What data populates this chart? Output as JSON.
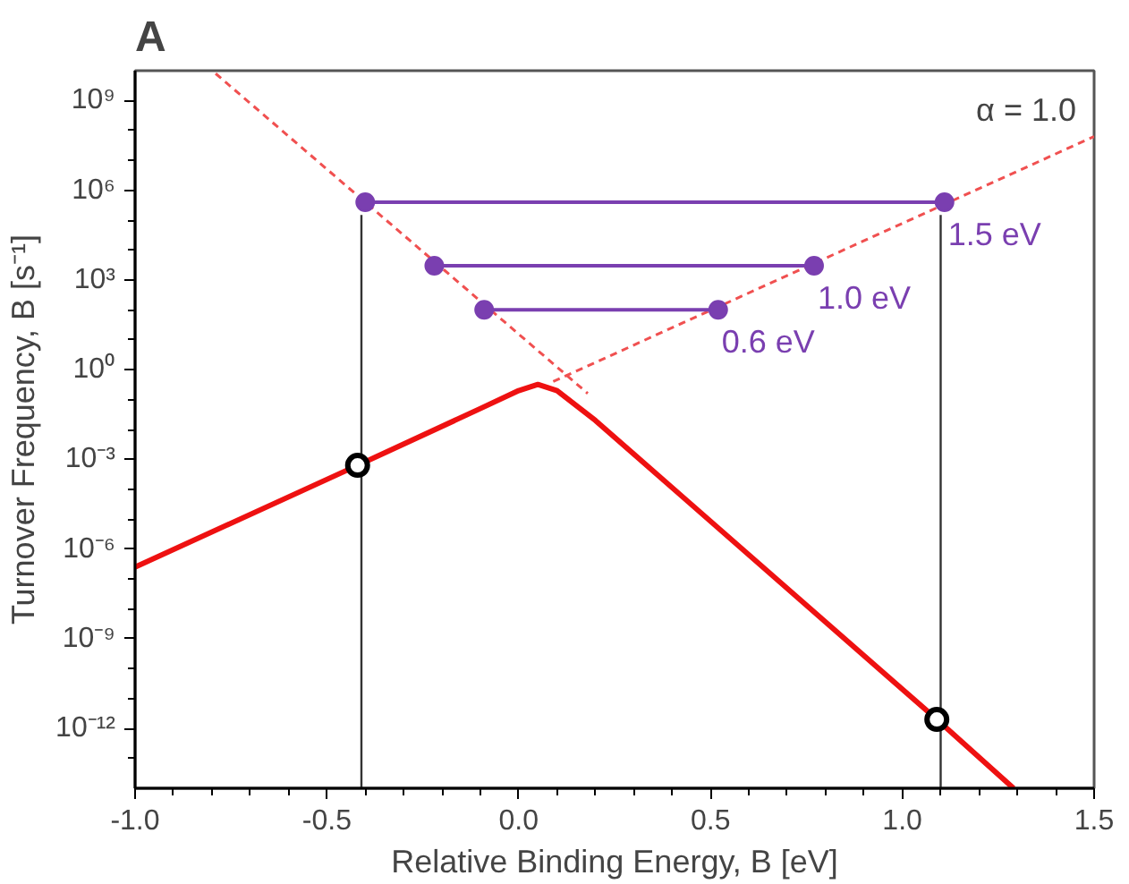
{
  "chart_data": {
    "type": "line",
    "title": "A",
    "xlabel": "Relative Binding Energy, B [eV]",
    "ylabel": "Turnover Frequency, B [s⁻¹]",
    "log": "y",
    "grid": false,
    "xlim": [
      -1.0,
      1.5
    ],
    "ylim": [
      1e-14,
      10000000000.0
    ],
    "xticks": [
      {
        "value": -1.0,
        "label": "-1.0"
      },
      {
        "value": -0.9,
        "label": null
      },
      {
        "value": -0.8,
        "label": null
      },
      {
        "value": -0.7,
        "label": null
      },
      {
        "value": -0.6,
        "label": null
      },
      {
        "value": -0.5,
        "label": "-0.5"
      },
      {
        "value": -0.4,
        "label": null
      },
      {
        "value": -0.3,
        "label": null
      },
      {
        "value": -0.2,
        "label": null
      },
      {
        "value": -0.1,
        "label": null
      },
      {
        "value": 0.0,
        "label": "0.0"
      },
      {
        "value": 0.1,
        "label": null
      },
      {
        "value": 0.2,
        "label": null
      },
      {
        "value": 0.3,
        "label": null
      },
      {
        "value": 0.4,
        "label": null
      },
      {
        "value": 0.5,
        "label": "0.5"
      },
      {
        "value": 0.6,
        "label": null
      },
      {
        "value": 0.7,
        "label": null
      },
      {
        "value": 0.8,
        "label": null
      },
      {
        "value": 0.9,
        "label": null
      },
      {
        "value": 1.0,
        "label": "1.0"
      },
      {
        "value": 1.1,
        "label": null
      },
      {
        "value": 1.2,
        "label": null
      },
      {
        "value": 1.3,
        "label": null
      },
      {
        "value": 1.4,
        "label": null
      },
      {
        "value": 1.5,
        "label": "1.5"
      }
    ],
    "yticks": [
      {
        "value": 1e-13,
        "label": null
      },
      {
        "value": 1e-12,
        "label": "10⁻¹²"
      },
      {
        "value": 1e-11,
        "label": null
      },
      {
        "value": 1e-10,
        "label": null
      },
      {
        "value": 1e-09,
        "label": "10⁻⁹"
      },
      {
        "value": 1e-08,
        "label": null
      },
      {
        "value": 1e-07,
        "label": null
      },
      {
        "value": 1e-06,
        "label": "10⁻⁶"
      },
      {
        "value": 1e-05,
        "label": null
      },
      {
        "value": 0.0001,
        "label": null
      },
      {
        "value": 0.001,
        "label": "10⁻³"
      },
      {
        "value": 0.01,
        "label": null
      },
      {
        "value": 0.1,
        "label": null
      },
      {
        "value": 1,
        "label": "10⁰"
      },
      {
        "value": 10,
        "label": null
      },
      {
        "value": 100,
        "label": null
      },
      {
        "value": 1000,
        "label": "10³"
      },
      {
        "value": 10000.0,
        "label": null
      },
      {
        "value": 100000.0,
        "label": null
      },
      {
        "value": 1000000.0,
        "label": "10⁶"
      },
      {
        "value": 10000000.0,
        "label": null
      },
      {
        "value": 100000000.0,
        "label": null
      },
      {
        "value": 1000000000.0,
        "label": "10⁹"
      }
    ],
    "series": [
      {
        "color": "#ee1111",
        "line_style": "solid",
        "x": [
          -1.0,
          -0.42,
          -0.1,
          0.0,
          0.05,
          0.1,
          0.2,
          1.09,
          1.29
        ],
        "values": [
          2.5e-07,
          0.00063,
          0.05,
          0.2,
          0.32,
          0.2,
          0.02,
          2e-12,
          1e-14
        ]
      },
      {
        "color": "#f05050",
        "line_style": "dashed",
        "x": [
          -0.79,
          0.18
        ],
        "values": [
          8000000000.0,
          0.16
        ]
      },
      {
        "color": "#f05050",
        "line_style": "dashed",
        "x": [
          0.09,
          1.5
        ],
        "values": [
          0.4,
          63000000.0
        ]
      },
      {
        "type": "line",
        "color": "#333333",
        "line_style": "solid",
        "x": [
          -0.41,
          -0.41
        ],
        "values": [
          1e-14,
          150000.0
        ]
      },
      {
        "type": "line",
        "color": "#333333",
        "line_style": "solid",
        "x": [
          1.1,
          1.1
        ],
        "values": [
          1e-14,
          150000.0
        ]
      },
      {
        "type": "line",
        "color": "#7a3fb0",
        "line_style": "solid",
        "marker": "circle",
        "x": [
          -0.4,
          1.11
        ],
        "values": [
          400000.0,
          400000.0
        ]
      },
      {
        "type": "line",
        "color": "#7a3fb0",
        "line_style": "solid",
        "marker": "circle",
        "x": [
          -0.22,
          0.77
        ],
        "values": [
          3000,
          3000
        ]
      },
      {
        "type": "line",
        "color": "#7a3fb0",
        "line_style": "solid",
        "marker": "circle",
        "x": [
          -0.09,
          0.52
        ],
        "values": [
          100,
          100
        ]
      },
      {
        "type": "scatter",
        "color": "#000000",
        "marker": "circle",
        "x": [
          -0.42,
          1.09
        ],
        "values": [
          0.00063,
          2e-12
        ]
      }
    ],
    "annotations": [
      "α = 1.0",
      {
        "text": "1.5 eV",
        "x": 1.11,
        "y": 400000.0
      },
      {
        "text": "1.0 eV",
        "x": 0.77,
        "y": 3000
      },
      {
        "text": "0.6 eV",
        "x": 0.52,
        "y": 100
      }
    ]
  }
}
